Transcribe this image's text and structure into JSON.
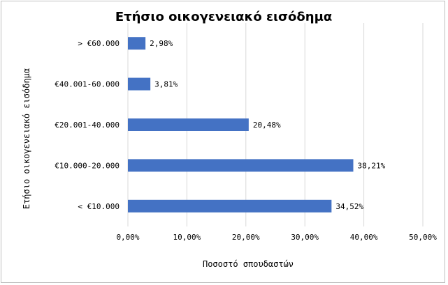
{
  "chart_data": {
    "type": "bar",
    "orientation": "horizontal",
    "title": "Ετήσιο οικογενειακό εισόδημα",
    "xlabel": "Ποσοστό σπουδαστών",
    "ylabel": "Ετήσιο οικογενειακό εισόδημα",
    "categories": [
      "> €60.000",
      "€40.001-60.000",
      "€20.001-40.000",
      "€10.000-20.000",
      "< €10.000"
    ],
    "values": [
      2.98,
      3.81,
      20.48,
      38.21,
      34.52
    ],
    "data_labels": [
      "2,98%",
      "3,81%",
      "20,48%",
      "38,21%",
      "34,52%"
    ],
    "xlim": [
      0,
      50
    ],
    "x_ticks": [
      0,
      10,
      20,
      30,
      40,
      50
    ],
    "x_tick_labels": [
      "0,00%",
      "10,00%",
      "20,00%",
      "30,00%",
      "40,00%",
      "50,00%"
    ],
    "grid": "vertical",
    "legend": "none",
    "colors": {
      "bar": "#4472c4",
      "grid": "#d9d9d9",
      "border": "#bfbfbf"
    }
  }
}
